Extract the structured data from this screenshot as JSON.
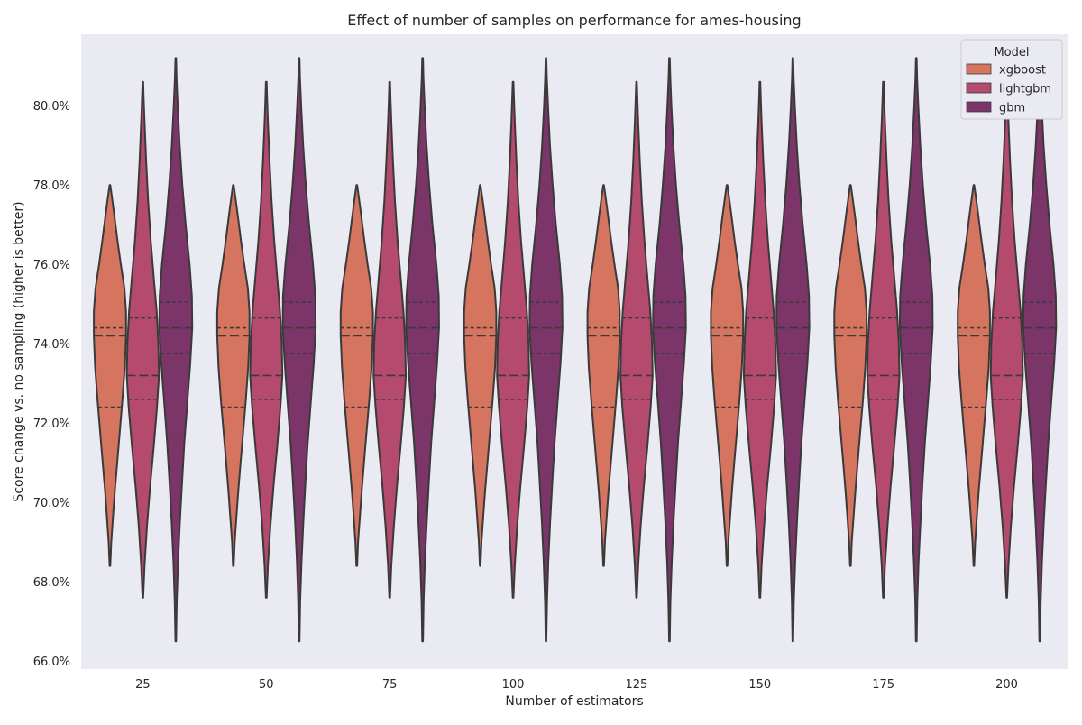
{
  "chart_data": {
    "type": "violin",
    "title": "Effect of number of samples on performance for ames-housing",
    "xlabel": "Number of estimators",
    "ylabel": "Score change vs. no sampling (higher is better)",
    "categories": [
      "25",
      "50",
      "75",
      "100",
      "125",
      "150",
      "175",
      "200"
    ],
    "ylim": [
      65.8,
      81.8
    ],
    "yticks": [
      66,
      68,
      70,
      72,
      74,
      76,
      78,
      80
    ],
    "ytick_labels": [
      "66.0%",
      "68.0%",
      "70.0%",
      "72.0%",
      "74.0%",
      "76.0%",
      "78.0%",
      "80.0%"
    ],
    "grid": false,
    "legend": {
      "title": "Model",
      "placement": "top-right"
    },
    "series": [
      {
        "name": "xgboost",
        "color": "#d6755f",
        "min": 68.4,
        "max": 78.0,
        "q1": 72.4,
        "median": 74.2,
        "q3": 74.4,
        "density": [
          [
            68.4,
            0.02
          ],
          [
            69.0,
            0.08
          ],
          [
            69.6,
            0.18
          ],
          [
            70.3,
            0.3
          ],
          [
            71.0,
            0.44
          ],
          [
            71.8,
            0.6
          ],
          [
            72.6,
            0.76
          ],
          [
            73.4,
            0.9
          ],
          [
            74.2,
            0.98
          ],
          [
            74.8,
            0.98
          ],
          [
            75.4,
            0.88
          ],
          [
            76.0,
            0.66
          ],
          [
            76.6,
            0.46
          ],
          [
            77.2,
            0.28
          ],
          [
            77.7,
            0.12
          ],
          [
            78.0,
            0.02
          ]
        ]
      },
      {
        "name": "lightgbm",
        "color": "#b44a6e",
        "min": 67.6,
        "max": 80.6,
        "q1": 72.6,
        "median": 73.2,
        "q3": 74.65,
        "density": [
          [
            67.6,
            0.02
          ],
          [
            68.4,
            0.1
          ],
          [
            69.4,
            0.25
          ],
          [
            70.4,
            0.44
          ],
          [
            71.4,
            0.66
          ],
          [
            72.4,
            0.86
          ],
          [
            73.2,
            0.98
          ],
          [
            74.0,
            0.94
          ],
          [
            74.8,
            0.84
          ],
          [
            75.6,
            0.68
          ],
          [
            76.6,
            0.48
          ],
          [
            77.6,
            0.32
          ],
          [
            78.6,
            0.2
          ],
          [
            79.6,
            0.1
          ],
          [
            80.2,
            0.05
          ],
          [
            80.6,
            0.02
          ]
        ]
      },
      {
        "name": "gbm",
        "color": "#7b3569",
        "min": 66.5,
        "max": 81.2,
        "q1": 73.75,
        "median": 74.4,
        "q3": 75.05,
        "density": [
          [
            66.5,
            0.02
          ],
          [
            67.5,
            0.06
          ],
          [
            68.5,
            0.14
          ],
          [
            69.5,
            0.25
          ],
          [
            70.5,
            0.38
          ],
          [
            71.5,
            0.52
          ],
          [
            72.5,
            0.7
          ],
          [
            73.5,
            0.88
          ],
          [
            74.4,
            1.0
          ],
          [
            75.2,
            0.98
          ],
          [
            76.0,
            0.84
          ],
          [
            77.0,
            0.6
          ],
          [
            78.0,
            0.4
          ],
          [
            79.0,
            0.24
          ],
          [
            80.0,
            0.12
          ],
          [
            80.7,
            0.05
          ],
          [
            81.2,
            0.02
          ]
        ]
      }
    ]
  }
}
